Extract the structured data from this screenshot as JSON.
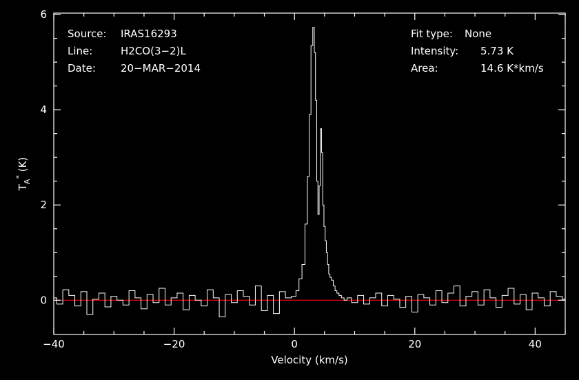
{
  "info": {
    "source_label": "Source:",
    "source_value": "IRAS16293",
    "line_label": "Line:",
    "line_value": "H2CO(3−2)L",
    "date_label": "Date:",
    "date_value": "20−MAR−2014",
    "fit_label": "Fit type:",
    "fit_value": "None",
    "intensity_label": "Intensity:",
    "intensity_value": "5.73 K",
    "area_label": "Area:",
    "area_value": "14.6 K*km/s"
  },
  "chart_data": {
    "type": "line",
    "title": "",
    "xlabel": "Velocity (km/s)",
    "ylabel": "T_A* (K)",
    "ylabel_main": "T",
    "ylabel_sub": "A",
    "ylabel_sup": "*",
    "ylabel_unit": " (K)",
    "xlim": [
      -40,
      45
    ],
    "ylim": [
      -0.72,
      6.03
    ],
    "xticks": [
      -40,
      -20,
      0,
      20,
      40
    ],
    "xtick_labels": [
      "−40",
      "−20",
      "0",
      "20",
      "40"
    ],
    "yticks": [
      0,
      2,
      4,
      6
    ],
    "ytick_labels": [
      "0",
      "2",
      "4",
      "6"
    ],
    "grid": false,
    "colors": {
      "spectrum": "#ffffff",
      "baseline": "#ff0000",
      "background": "#000000"
    },
    "baseline_y": 0,
    "series": [
      {
        "style": "steps",
        "x": [
          -40.0,
          -39.0,
          -38.0,
          -37.0,
          -36.0,
          -35.0,
          -34.0,
          -33.0,
          -32.0,
          -31.0,
          -30.0,
          -29.0,
          -28.0,
          -27.0,
          -26.0,
          -25.0,
          -24.0,
          -23.0,
          -22.0,
          -21.0,
          -20.0,
          -19.0,
          -18.0,
          -17.0,
          -16.0,
          -15.0,
          -14.0,
          -13.0,
          -12.0,
          -11.0,
          -10.0,
          -9.0,
          -8.0,
          -7.0,
          -6.0,
          -5.0,
          -4.0,
          -3.0,
          -2.0,
          -1.0,
          0.0,
          0.5,
          1.0,
          1.5,
          2.0,
          2.3,
          2.6,
          2.9,
          3.2,
          3.4,
          3.6,
          3.8,
          4.0,
          4.2,
          4.4,
          4.6,
          4.8,
          5.0,
          5.2,
          5.4,
          5.6,
          5.8,
          6.0,
          6.3,
          6.6,
          6.9,
          7.2,
          7.6,
          8.0,
          8.5,
          9.0,
          10.0,
          11.0,
          12.0,
          13.0,
          14.0,
          15.0,
          16.0,
          17.0,
          18.0,
          19.0,
          20.0,
          21.0,
          22.0,
          23.0,
          24.0,
          25.0,
          26.0,
          27.0,
          28.0,
          29.0,
          30.0,
          31.0,
          32.0,
          33.0,
          34.0,
          35.0,
          36.0,
          37.0,
          38.0,
          39.0,
          40.0,
          41.0,
          42.0,
          43.0,
          44.0,
          45.0
        ],
        "y": [
          0.05,
          -0.08,
          0.22,
          0.1,
          -0.12,
          0.18,
          -0.3,
          0.02,
          0.15,
          -0.14,
          0.08,
          0.0,
          -0.1,
          0.2,
          0.05,
          -0.18,
          0.12,
          -0.05,
          0.25,
          -0.1,
          0.05,
          0.15,
          -0.2,
          0.1,
          0.0,
          -0.12,
          0.22,
          0.05,
          -0.35,
          0.12,
          -0.05,
          0.2,
          0.08,
          -0.1,
          0.3,
          -0.22,
          0.1,
          -0.28,
          0.18,
          0.05,
          0.08,
          0.2,
          0.45,
          0.75,
          1.6,
          2.6,
          3.9,
          5.35,
          5.73,
          5.2,
          4.2,
          2.5,
          1.8,
          2.4,
          3.6,
          3.1,
          2.0,
          1.55,
          1.25,
          1.0,
          0.75,
          0.55,
          0.48,
          0.42,
          0.3,
          0.2,
          0.15,
          0.1,
          0.05,
          0.0,
          0.05,
          -0.05,
          0.1,
          -0.08,
          0.05,
          0.15,
          -0.12,
          0.1,
          0.02,
          -0.15,
          0.08,
          -0.25,
          0.12,
          0.05,
          -0.1,
          0.2,
          -0.05,
          0.15,
          0.3,
          -0.12,
          0.08,
          0.18,
          -0.1,
          0.22,
          0.05,
          -0.15,
          0.1,
          0.25,
          -0.08,
          0.12,
          -0.2,
          0.15,
          0.05,
          -0.12,
          0.18,
          0.08,
          0.02
        ]
      }
    ]
  }
}
